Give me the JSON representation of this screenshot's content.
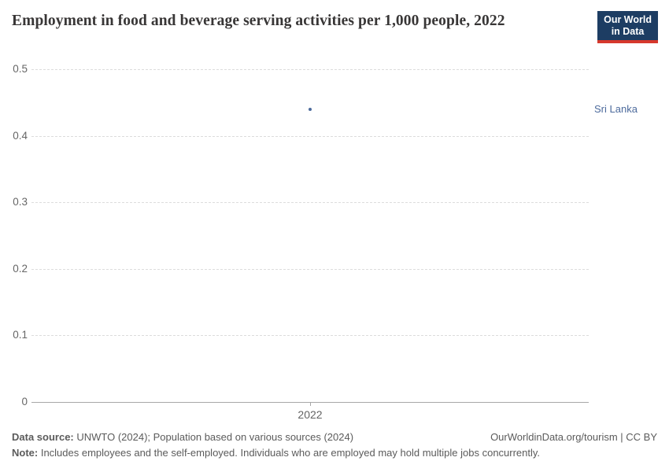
{
  "header": {
    "title": "Employment in food and beverage serving activities per 1,000 people, 2022",
    "logo": {
      "line1": "Our World",
      "line2": "in Data"
    }
  },
  "chart_data": {
    "type": "scatter",
    "title": "Employment in food and beverage serving activities per 1,000 people, 2022",
    "ylim": [
      0,
      0.5
    ],
    "grid": true,
    "legend_position": "right-of-point",
    "yticks": [
      {
        "value": 0,
        "label": "0"
      },
      {
        "value": 0.1,
        "label": "0.1"
      },
      {
        "value": 0.2,
        "label": "0.2"
      },
      {
        "value": 0.3,
        "label": "0.3"
      },
      {
        "value": 0.4,
        "label": "0.4"
      },
      {
        "value": 0.5,
        "label": "0.5"
      }
    ],
    "xticks": [
      {
        "value": 2022,
        "label": "2022"
      }
    ],
    "series": [
      {
        "name": "Sri Lanka",
        "x": 2022,
        "y": 0.44,
        "color": "#4c6a9c"
      }
    ]
  },
  "footer": {
    "data_source_label": "Data source:",
    "data_source_text": " UNWTO (2024); Population based on various sources (2024)",
    "attribution": "OurWorldinData.org/tourism | CC BY",
    "note_label": "Note:",
    "note_text": " Includes employees and the self-employed. Individuals who are employed may hold multiple jobs concurrently."
  },
  "colors": {
    "accent_blue": "#4c6a9c",
    "logo_background": "#1d3d63",
    "logo_red_bar": "#d6382c",
    "gridline": "#dcdcdc",
    "axis_line": "#a7a7a7",
    "tick_text": "#666666",
    "footer_text": "#5b5b5b",
    "title_text": "#383636"
  }
}
